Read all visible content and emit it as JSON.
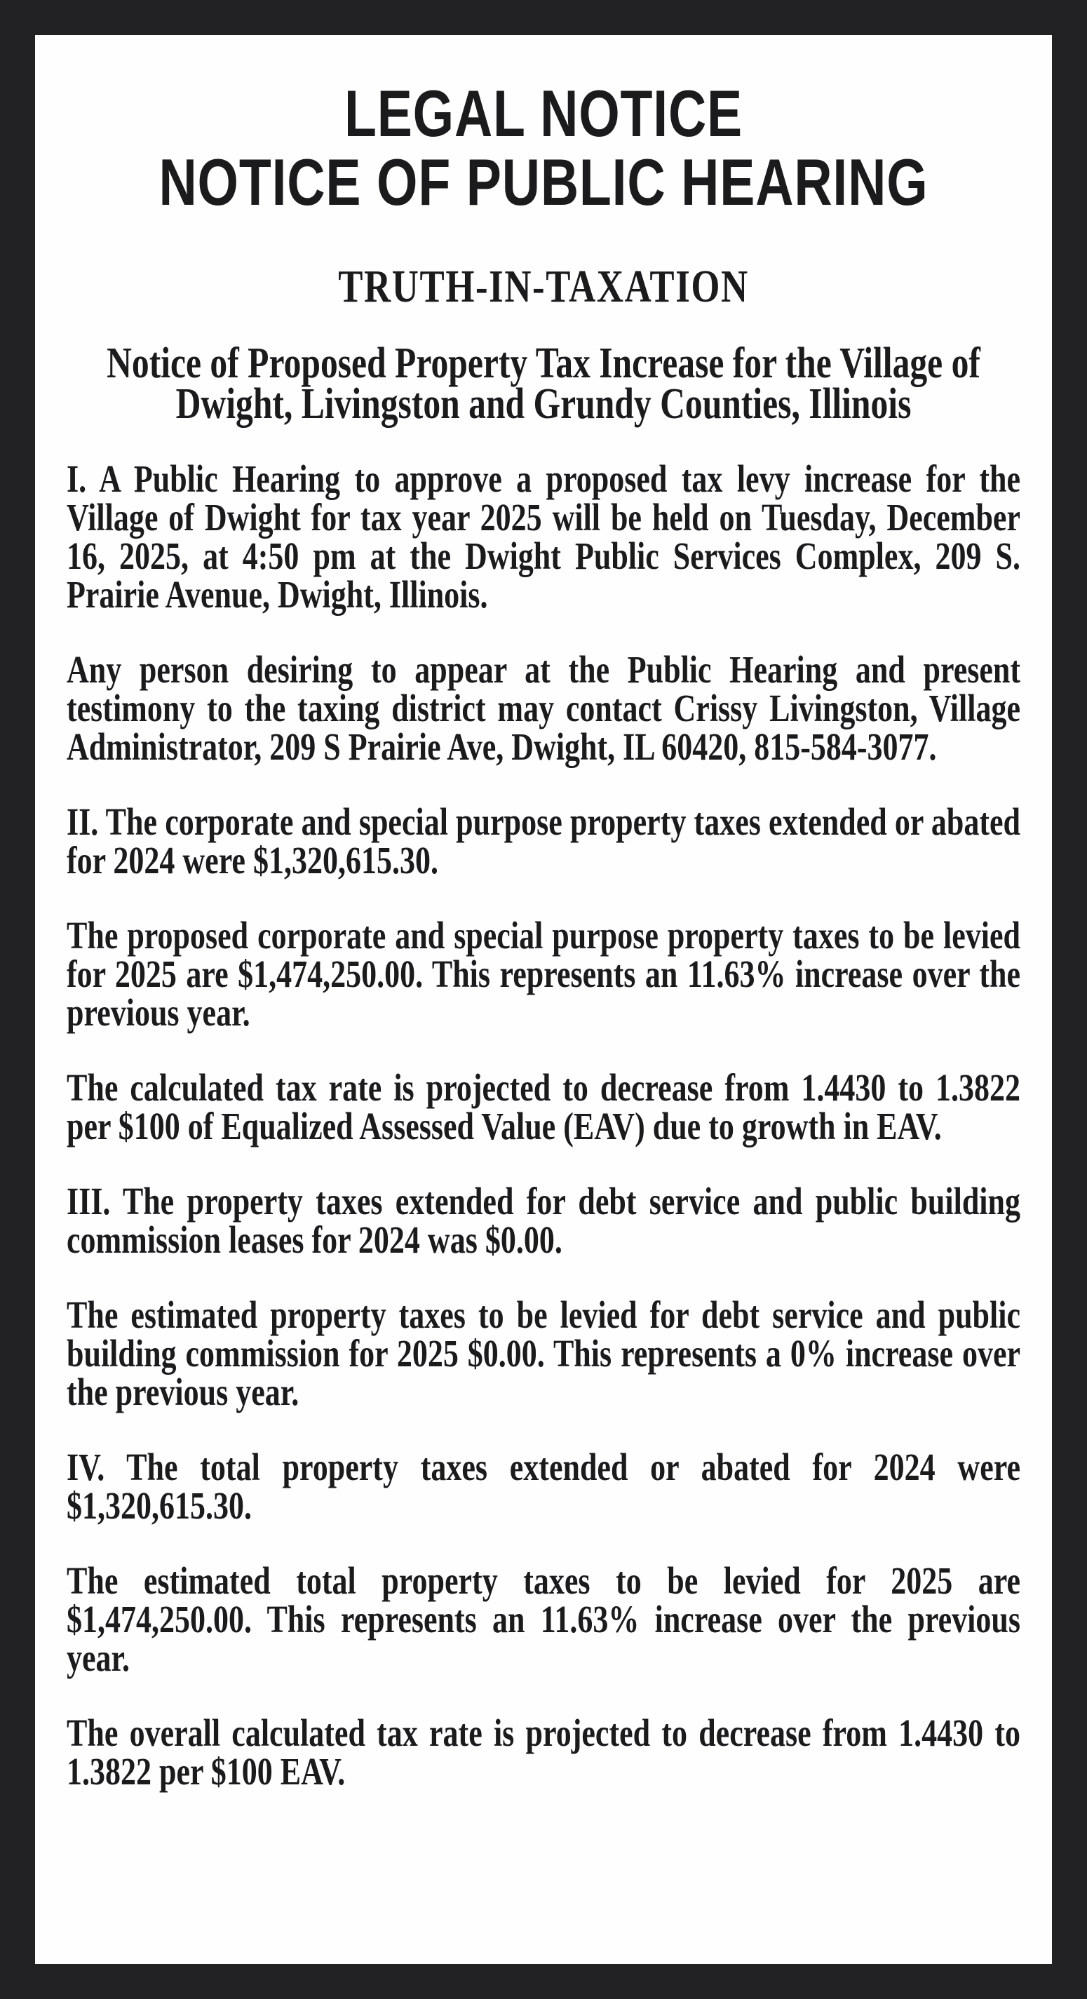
{
  "page": {
    "frame_color": "#222224",
    "paper_color": "#fefefe",
    "ink_color": "#1b1b1d"
  },
  "notice": {
    "headline_line1": "LEGAL NOTICE",
    "headline_line2": "NOTICE OF PUBLIC HEARING",
    "kicker": "TRUTH-IN-TAXATION",
    "subheadline": "Notice of Proposed Property Tax Increase for the Village of Dwight, Livingston and Grundy Counties, Illinois",
    "paragraphs": [
      "I. A Public Hearing to approve a proposed tax levy increase for the Village of Dwight for tax year 2025 will be held on Tuesday, December 16, 2025, at 4:50 pm at the Dwight Public Services Complex, 209 S. Prairie Avenue, Dwight, Illinois.",
      "Any person desiring to appear at the Public Hearing and present testimony to the taxing district may contact Crissy Livingston, Village Administrator, 209 S Prairie Ave, Dwight, IL 60420, 815-584-3077.",
      "II. The corporate and special purpose property taxes extended or abated for 2024 were $1,320,615.30.",
      "The proposed corporate and special purpose property taxes to be levied for 2025 are $1,474,250.00. This represents an 11.63% increase over the previous year.",
      "The calculated tax rate is projected to decrease from 1.4430 to 1.3822 per $100 of Equalized Assessed Value (EAV) due to growth in EAV.",
      "III. The property taxes extended for debt service and public building commission leases for 2024 was $0.00.",
      "The estimated property taxes to be levied for debt service and public building commission for 2025 $0.00. This represents a 0% increase over the previous year.",
      "IV. The total property taxes extended or abated for 2024 were $1,320,615.30.",
      "The estimated total property taxes to be levied for 2025 are $1,474,250.00. This represents an 11.63% increase over the previous year.",
      "The overall calculated tax rate is projected to decrease from 1.4430 to 1.3822 per $100 EAV."
    ]
  }
}
